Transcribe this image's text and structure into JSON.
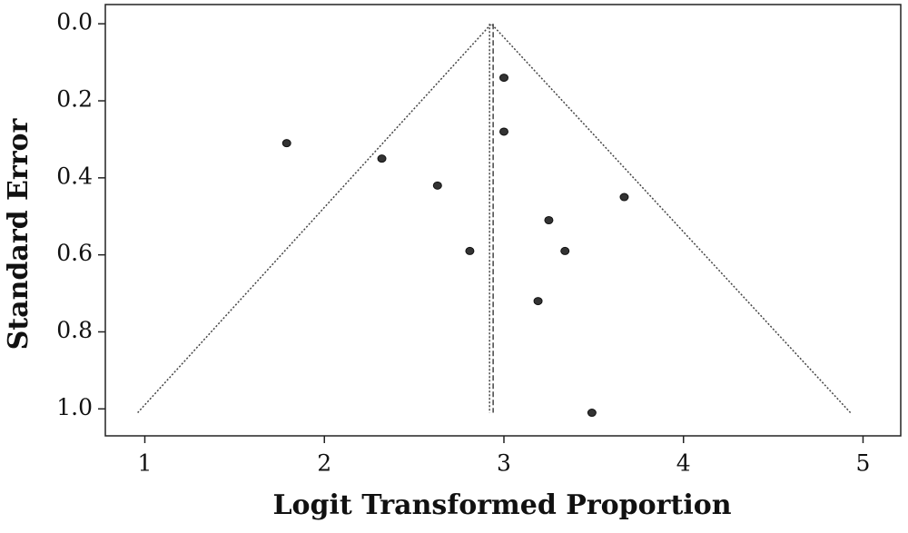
{
  "chart_data": {
    "type": "scatter",
    "x_label": "Logit Transformed Proportion",
    "y_label": "Standard Error",
    "x": [
      1.79,
      2.32,
      2.63,
      2.81,
      3.0,
      3.0,
      3.25,
      3.34,
      3.19,
      3.67,
      3.49
    ],
    "y": [
      0.31,
      0.35,
      0.42,
      0.59,
      0.14,
      0.28,
      0.51,
      0.59,
      0.72,
      0.45,
      1.01
    ],
    "color": "#333333",
    "xlim": [
      0.78,
      5.21
    ],
    "xticks": [
      1,
      2,
      3,
      4,
      5
    ],
    "ylim": [
      -0.05,
      1.07
    ],
    "yticks": [
      {
        "value": 0,
        "label": "0.0"
      },
      0.2,
      0.4,
      0.6,
      0.8,
      {
        "value": 1,
        "label": "1.0"
      }
    ],
    "y_inverted": true,
    "funnel": {
      "x": [
        0.96,
        2.93,
        4.93
      ],
      "y": [
        1.01,
        0,
        1.01
      ],
      "style": "dotted"
    },
    "center_lines": [
      {
        "x": [
          2.92,
          2.92
        ],
        "y": [
          0,
          1.01
        ],
        "style": "dotted"
      },
      {
        "x": [
          2.94,
          2.94
        ],
        "y": [
          0,
          1.01
        ],
        "style": "dashed"
      }
    ]
  }
}
